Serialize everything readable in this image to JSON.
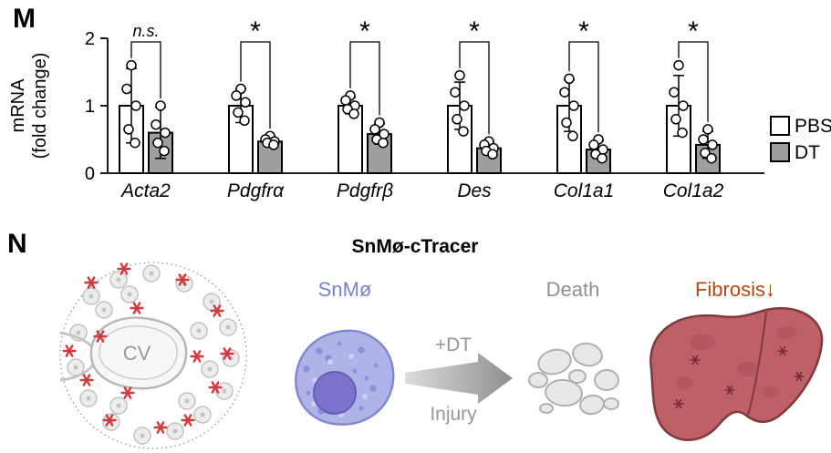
{
  "panels": {
    "m": {
      "label": "M"
    },
    "n": {
      "label": "N",
      "title": "SnMø-cTracer"
    }
  },
  "chart_data": {
    "type": "bar",
    "ylabel_line1": "mRNA",
    "ylabel_line2": "(fold change)",
    "ylim": [
      0,
      2
    ],
    "yticks": [
      0,
      1,
      2
    ],
    "categories": [
      "Acta2",
      "Pdgfrα",
      "Pdgfrβ",
      "Des",
      "Col1a1",
      "Col1a2"
    ],
    "significance": [
      "n.s.",
      "*",
      "*",
      "*",
      "*",
      "*"
    ],
    "legend_position": "right",
    "series": [
      {
        "name": "PBS",
        "color": "#ffffff",
        "means": [
          1.0,
          1.0,
          1.0,
          1.0,
          1.0,
          1.0
        ],
        "sd": [
          0.55,
          0.25,
          0.12,
          0.35,
          0.38,
          0.45
        ],
        "points": [
          [
            1.6,
            1.25,
            1.0,
            0.65,
            0.45
          ],
          [
            1.25,
            1.15,
            1.05,
            0.9,
            0.78
          ],
          [
            1.15,
            1.08,
            1.0,
            0.95,
            0.88
          ],
          [
            1.45,
            1.2,
            1.0,
            0.8,
            0.62
          ],
          [
            1.4,
            1.2,
            1.0,
            0.75,
            0.55
          ],
          [
            1.6,
            1.2,
            1.0,
            0.8,
            0.6
          ]
        ]
      },
      {
        "name": "DT",
        "color": "#9e9e9e",
        "means": [
          0.6,
          0.47,
          0.58,
          0.37,
          0.35,
          0.42
        ],
        "sd": [
          0.38,
          0.08,
          0.15,
          0.1,
          0.13,
          0.2
        ],
        "points": [
          [
            1.0,
            0.72,
            0.6,
            0.45,
            0.33
          ],
          [
            0.55,
            0.5,
            0.47,
            0.45,
            0.42
          ],
          [
            0.75,
            0.65,
            0.58,
            0.5,
            0.45
          ],
          [
            0.47,
            0.42,
            0.37,
            0.33,
            0.28
          ],
          [
            0.5,
            0.42,
            0.35,
            0.28,
            0.22
          ],
          [
            0.65,
            0.5,
            0.42,
            0.3,
            0.22
          ]
        ]
      }
    ]
  },
  "diagram": {
    "cv_label": "CV",
    "snmo_label": "SnMø",
    "dt_label": "+DT",
    "injury_label": "Injury",
    "death_label": "Death",
    "fibrosis_label": "Fibrosis",
    "fibrosis_arrow": "↓",
    "colors": {
      "snmo_text": "#7b83cf",
      "cell_body": "#aeb4e7",
      "cell_nucleus": "#7b72cc",
      "gray_text": "#8f8f8f",
      "fibrosis_text": "#b5490e",
      "liver_fill": "#bf6066",
      "liver_outline": "#7e3a3f",
      "red_cell": "#d23b3d",
      "dt_bar": "#9e9e9e"
    }
  }
}
